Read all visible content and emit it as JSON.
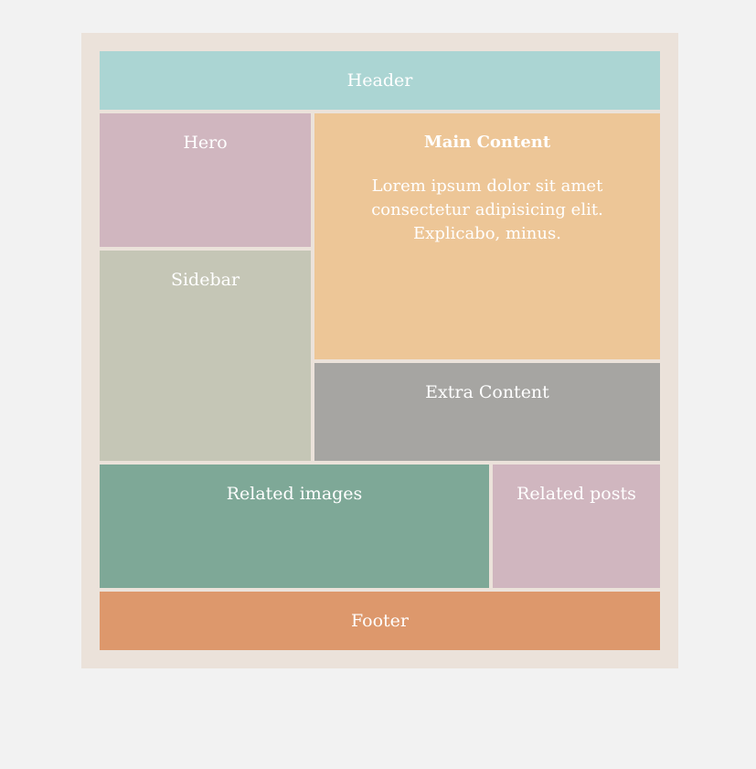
{
  "layout": {
    "header": "Header",
    "hero": "Hero",
    "sidebar": "Sidebar",
    "main": {
      "title": "Main Content",
      "lines": [
        "Lorem ipsum dolor sit amet",
        "consectetur adipisicing elit.",
        "Explicabo, minus."
      ]
    },
    "extra": "Extra Content",
    "related_images": "Related images",
    "related_posts": "Related posts",
    "footer": "Footer"
  },
  "colors": {
    "page_background": "#f2f2f2",
    "frame_background": "#ebe2da",
    "header": "#abd5d3",
    "hero": "#d0b6bf",
    "sidebar": "#c5c6b6",
    "main": "#edc697",
    "extra": "#a6a5a2",
    "related_images": "#7ea897",
    "related_posts": "#d0b6bf",
    "footer": "#dd986c",
    "text": "#ffffff"
  }
}
